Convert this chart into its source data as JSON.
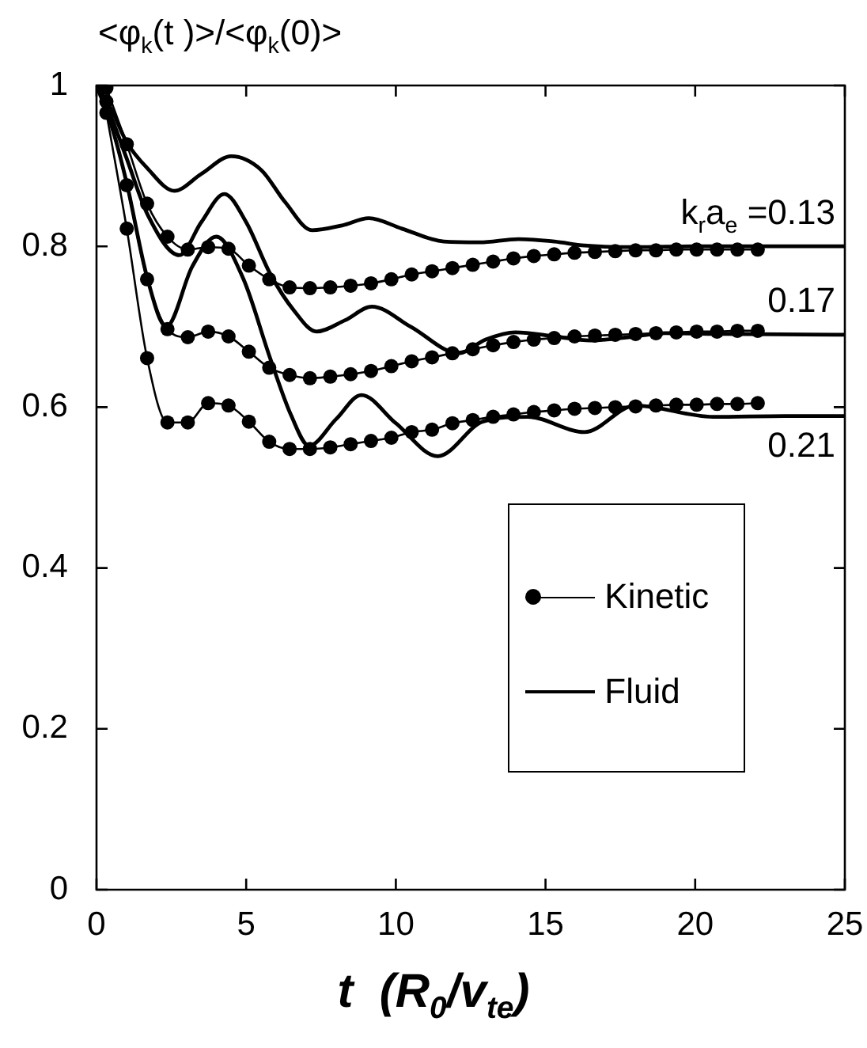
{
  "chart_data": {
    "type": "line",
    "ylabel": "<φ$_{k}$(t )>/<φ$_{k}$(0)>",
    "xlabel": "t  (R$_{0}$/v$_{te}$)",
    "xlim": [
      0,
      25
    ],
    "xticks": [
      0,
      5,
      10,
      15,
      20,
      25
    ],
    "ylim": [
      0,
      1
    ],
    "yticks": [
      0,
      0.2,
      0.4,
      0.6,
      0.8,
      1
    ],
    "grid": false,
    "legend": "right",
    "annotations": [
      "k$_{r}$a$_{e}$ =0.13",
      "0.17",
      "0.21"
    ],
    "series": [
      {
        "name": "Kinetic",
        "color": "#000000",
        "marker": "circle",
        "x": [
          0.33,
          1.01,
          1.69,
          2.37,
          3.05,
          3.73,
          4.41,
          5.09,
          5.77,
          6.45,
          7.13,
          7.81,
          8.49,
          9.17,
          9.85,
          10.53,
          11.21,
          11.89,
          12.57,
          13.25,
          13.93,
          14.61,
          15.29,
          15.97,
          16.65,
          17.33,
          18.01,
          18.69,
          19.37,
          20.05,
          20.73,
          21.41,
          22.09
        ],
        "values": [
          0.997,
          0.927,
          0.853,
          0.812,
          0.796,
          0.799,
          0.797,
          0.776,
          0.759,
          0.749,
          0.748,
          0.749,
          0.751,
          0.754,
          0.759,
          0.765,
          0.769,
          0.773,
          0.777,
          0.781,
          0.785,
          0.788,
          0.79,
          0.792,
          0.793,
          0.794,
          0.795,
          0.795,
          0.796,
          0.796,
          0.796,
          0.796,
          0.796
        ]
      },
      {
        "color": "#000000",
        "marker": "circle",
        "x": [
          0.33,
          1.01,
          1.69,
          2.37,
          3.05,
          3.73,
          4.41,
          5.09,
          5.77,
          6.45,
          7.13,
          7.81,
          8.49,
          9.17,
          9.85,
          10.53,
          11.21,
          11.89,
          12.57,
          13.25,
          13.93,
          14.61,
          15.29,
          15.97,
          16.65,
          17.33,
          18.01,
          18.69,
          19.37,
          20.05,
          20.73,
          21.41,
          22.09
        ],
        "values": [
          0.98,
          0.876,
          0.759,
          0.697,
          0.687,
          0.694,
          0.688,
          0.669,
          0.649,
          0.64,
          0.636,
          0.638,
          0.641,
          0.645,
          0.651,
          0.657,
          0.662,
          0.667,
          0.672,
          0.677,
          0.681,
          0.684,
          0.686,
          0.688,
          0.689,
          0.69,
          0.691,
          0.692,
          0.693,
          0.694,
          0.694,
          0.695,
          0.695
        ]
      },
      {
        "color": "#000000",
        "marker": "circle",
        "x": [
          0.33,
          1.01,
          1.69,
          2.37,
          3.05,
          3.73,
          4.41,
          5.09,
          5.77,
          6.45,
          7.13,
          7.81,
          8.49,
          9.17,
          9.85,
          10.53,
          11.21,
          11.89,
          12.57,
          13.25,
          13.93,
          14.61,
          15.29,
          15.97,
          16.65,
          17.33,
          18.01,
          18.69,
          19.37,
          20.05,
          20.73,
          21.41,
          22.09
        ],
        "values": [
          0.966,
          0.822,
          0.661,
          0.581,
          0.581,
          0.605,
          0.602,
          0.582,
          0.557,
          0.548,
          0.548,
          0.55,
          0.554,
          0.558,
          0.562,
          0.569,
          0.572,
          0.58,
          0.584,
          0.588,
          0.591,
          0.594,
          0.596,
          0.598,
          0.599,
          0.6,
          0.601,
          0.602,
          0.603,
          0.603,
          0.604,
          0.604,
          0.605
        ]
      },
      {
        "name": "Fluid",
        "color": "#000000",
        "marker": "none",
        "x": [
          0,
          0.5,
          1,
          1.7,
          2.6,
          3.5,
          4.5,
          5.5,
          6.3,
          7.2,
          8.2,
          9.1,
          10.2,
          11.6,
          12.8,
          14.1,
          15.3,
          16.3,
          18,
          20,
          22,
          25
        ],
        "values": [
          1,
          0.97,
          0.93,
          0.897,
          0.869,
          0.89,
          0.912,
          0.895,
          0.855,
          0.82,
          0.826,
          0.835,
          0.822,
          0.806,
          0.805,
          0.809,
          0.806,
          0.801,
          0.799,
          0.8,
          0.8,
          0.8
        ]
      },
      {
        "color": "#000000",
        "marker": "none",
        "x": [
          0,
          0.5,
          1,
          1.7,
          2.77,
          3.5,
          4.27,
          5,
          5.8,
          6.6,
          7.35,
          8.3,
          9.2,
          10.5,
          12.1,
          13,
          14,
          15.3,
          16.5,
          18,
          19,
          21,
          25
        ],
        "values": [
          1,
          0.96,
          0.91,
          0.84,
          0.789,
          0.83,
          0.865,
          0.83,
          0.766,
          0.72,
          0.694,
          0.708,
          0.725,
          0.7,
          0.667,
          0.684,
          0.693,
          0.688,
          0.683,
          0.688,
          0.692,
          0.691,
          0.69
        ]
      },
      {
        "color": "#000000",
        "marker": "none",
        "x": [
          0,
          0.5,
          1,
          1.7,
          2.33,
          3.2,
          4,
          4.9,
          5.8,
          6.5,
          7.1,
          8,
          8.85,
          10,
          11.4,
          12.9,
          14.4,
          16.3,
          18,
          20.6,
          23,
          25
        ],
        "values": [
          1,
          0.95,
          0.88,
          0.76,
          0.7,
          0.775,
          0.812,
          0.76,
          0.661,
          0.59,
          0.552,
          0.585,
          0.615,
          0.58,
          0.539,
          0.582,
          0.588,
          0.569,
          0.602,
          0.588,
          0.589,
          0.589
        ]
      }
    ]
  }
}
